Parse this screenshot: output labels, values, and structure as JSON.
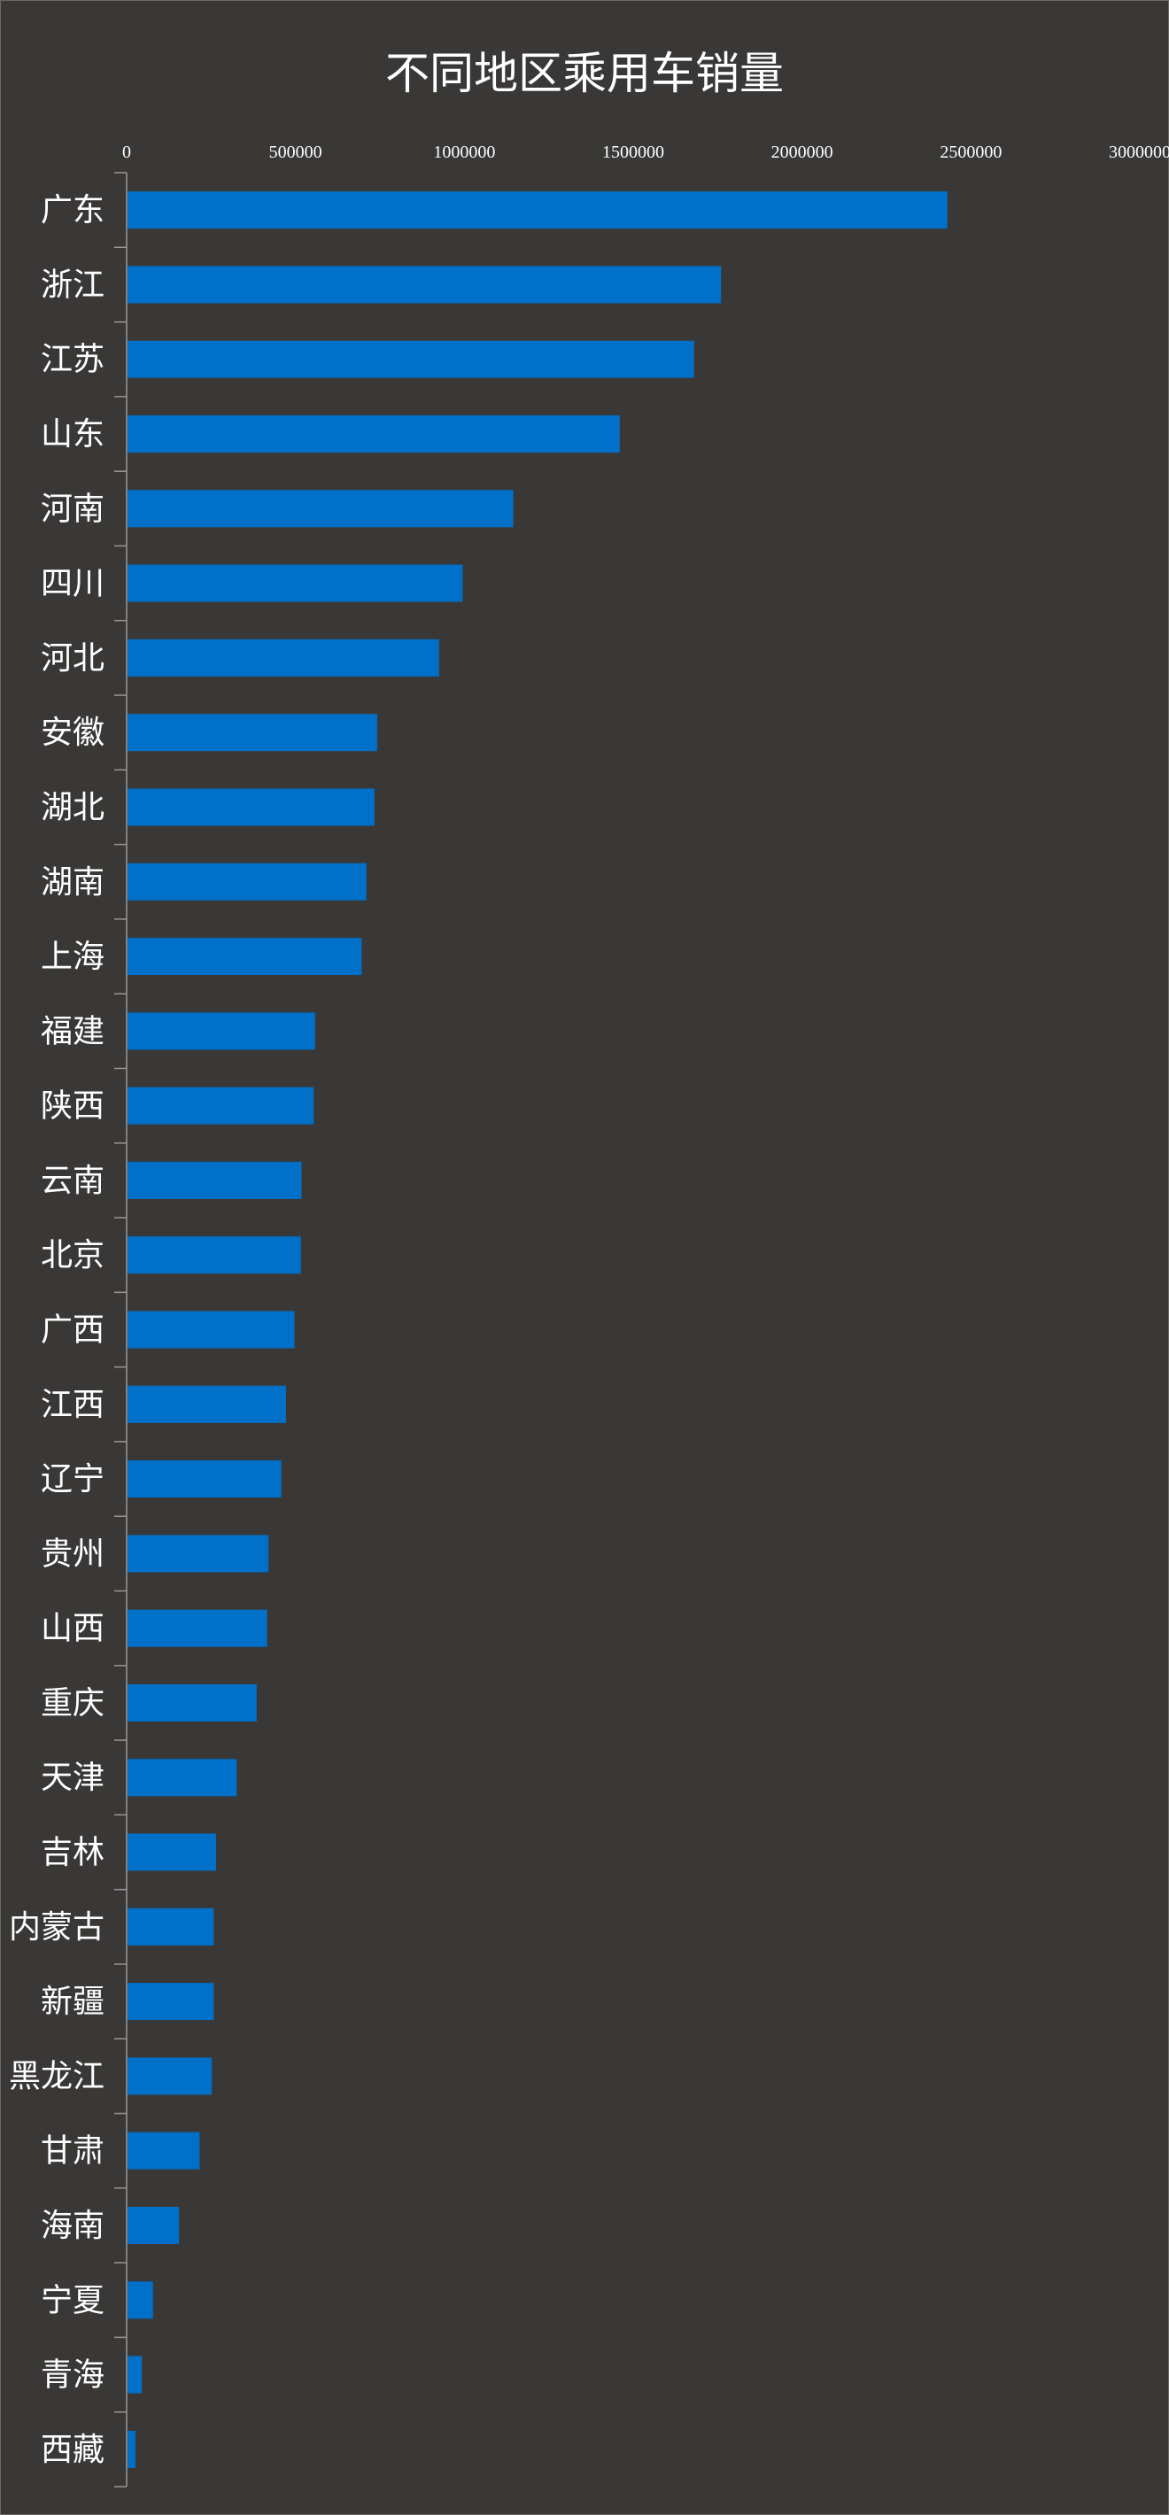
{
  "chart_data": {
    "type": "bar",
    "orientation": "horizontal",
    "title": "不同地区乘用车销量",
    "x_axis_position": "top",
    "xlim": [
      0,
      3000000
    ],
    "x_ticks": [
      0,
      500000,
      1000000,
      1500000,
      2000000,
      2500000,
      3000000
    ],
    "x_tick_labels": [
      "0",
      "500000",
      "1000000",
      "1500000",
      "2000000",
      "2500000",
      "3000000"
    ],
    "grid": false,
    "legend": "none",
    "bar_color": "#0070c8",
    "background_color": "#3a3837",
    "categories": [
      "广东",
      "浙江",
      "江苏",
      "山东",
      "河南",
      "四川",
      "河北",
      "安徽",
      "湖北",
      "湖南",
      "上海",
      "福建",
      "陕西",
      "云南",
      "北京",
      "广西",
      "江西",
      "辽宁",
      "贵州",
      "山西",
      "重庆",
      "天津",
      "吉林",
      "内蒙古",
      "新疆",
      "黑龙江",
      "甘肃",
      "海南",
      "宁夏",
      "青海",
      "西藏"
    ],
    "values": [
      2430000,
      1760000,
      1680000,
      1460000,
      1145000,
      995000,
      925000,
      742000,
      734000,
      710000,
      696000,
      558000,
      554000,
      518000,
      516000,
      497000,
      472000,
      458000,
      420000,
      416000,
      385000,
      326000,
      265000,
      258000,
      258000,
      252000,
      216000,
      155000,
      78000,
      45000,
      26000
    ]
  }
}
